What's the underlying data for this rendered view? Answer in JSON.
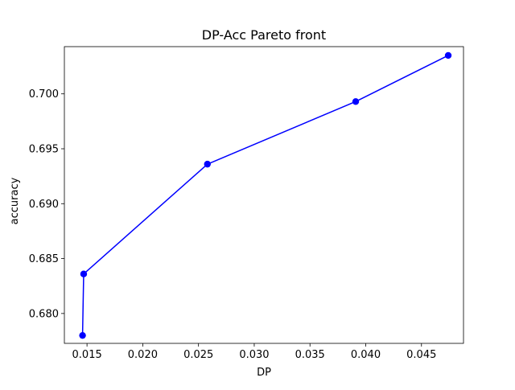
{
  "chart_data": {
    "type": "line",
    "title": "DP-Acc Pareto front",
    "xlabel": "DP",
    "ylabel": "accuracy",
    "xlim": [
      0.01297,
      0.04877
    ],
    "ylim": [
      0.67728,
      0.7043
    ],
    "xticks": [
      {
        "value": 0.015,
        "label": "0.015"
      },
      {
        "value": 0.02,
        "label": "0.020"
      },
      {
        "value": 0.025,
        "label": "0.025"
      },
      {
        "value": 0.03,
        "label": "0.030"
      },
      {
        "value": 0.035,
        "label": "0.035"
      },
      {
        "value": 0.04,
        "label": "0.040"
      },
      {
        "value": 0.045,
        "label": "0.045"
      }
    ],
    "yticks": [
      {
        "value": 0.68,
        "label": "0.680"
      },
      {
        "value": 0.685,
        "label": "0.685"
      },
      {
        "value": 0.69,
        "label": "0.690"
      },
      {
        "value": 0.695,
        "label": "0.695"
      },
      {
        "value": 0.7,
        "label": "0.700"
      }
    ],
    "grid": false,
    "series": [
      {
        "color": "#0000ff",
        "marker": "circle",
        "points": [
          {
            "x": 0.0146,
            "y": 0.678
          },
          {
            "x": 0.0147,
            "y": 0.6836
          },
          {
            "x": 0.0258,
            "y": 0.6936
          },
          {
            "x": 0.0391,
            "y": 0.6993
          },
          {
            "x": 0.0474,
            "y": 0.7035
          }
        ]
      }
    ]
  }
}
